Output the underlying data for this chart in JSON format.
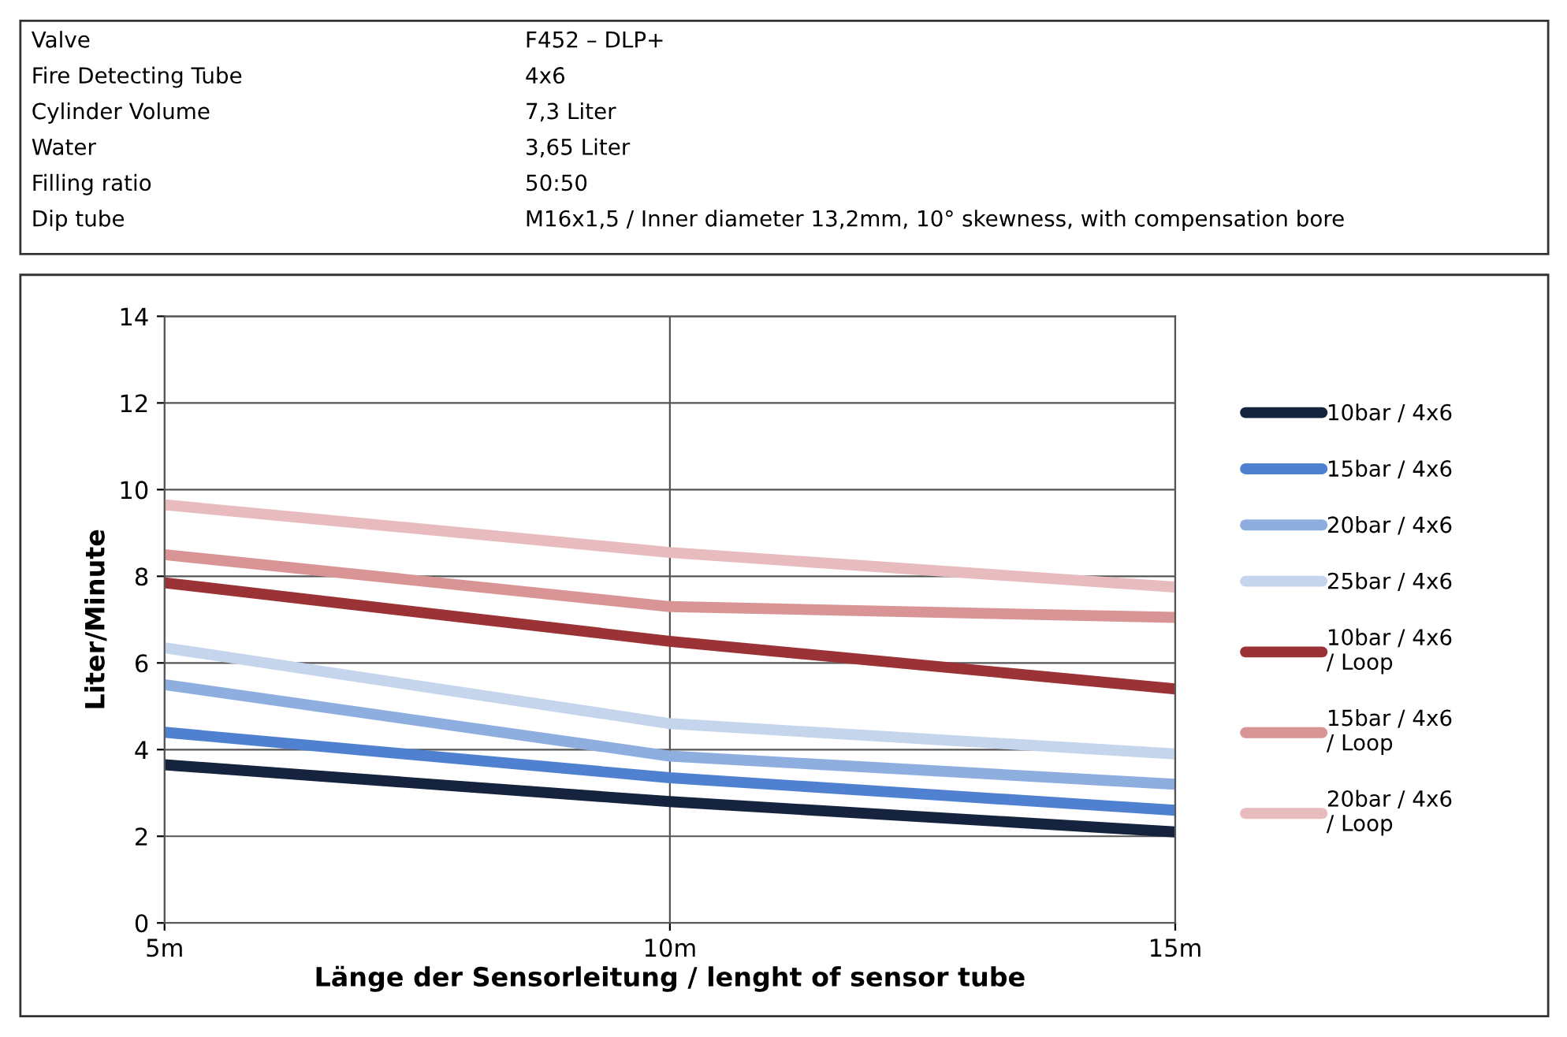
{
  "chart_data": {
    "type": "line",
    "xlabel": "Länge der Sensorleitung / lenght of sensor tube",
    "ylabel": "Liter/Minute",
    "categories": [
      "5m",
      "10m",
      "15m"
    ],
    "ylim": [
      0,
      14
    ],
    "yticks": [
      0,
      2,
      4,
      6,
      8,
      10,
      12,
      14
    ],
    "grid": true,
    "legend": "right",
    "line_style": "solid",
    "marker": "none",
    "annotations": [
      "Valve",
      "F452 – DLP+",
      "Fire Detecting Tube",
      "4x6",
      "Cylinder Volume",
      "7,3 Liter",
      "Water",
      "3,65 Liter",
      "Filling ratio",
      "50:50",
      "Dip tube",
      "M16x1,5 / Inner diameter 13,2mm, 10° skewness, with compensation bore"
    ],
    "series": [
      {
        "name": "10bar / 4x6",
        "color": "#15233f",
        "values": [
          3.65,
          2.8,
          2.1
        ]
      },
      {
        "name": "15bar / 4x6",
        "color": "#4f81d0",
        "values": [
          4.4,
          3.35,
          2.6
        ]
      },
      {
        "name": "20bar / 4x6",
        "color": "#8eaee0",
        "values": [
          5.5,
          3.85,
          3.2
        ]
      },
      {
        "name": "25bar / 4x6",
        "color": "#c5d5ec",
        "values": [
          6.35,
          4.6,
          3.9
        ]
      },
      {
        "name": "10bar / 4x6 / Loop",
        "color": "#9b3336",
        "values": [
          7.85,
          6.5,
          5.4
        ]
      },
      {
        "name": "15bar / 4x6 / Loop",
        "color": "#d99596",
        "values": [
          8.5,
          7.3,
          7.05
        ]
      },
      {
        "name": "20bar / 4x6 / Loop",
        "color": "#e8bcbe",
        "values": [
          9.65,
          8.55,
          7.75
        ]
      }
    ]
  }
}
